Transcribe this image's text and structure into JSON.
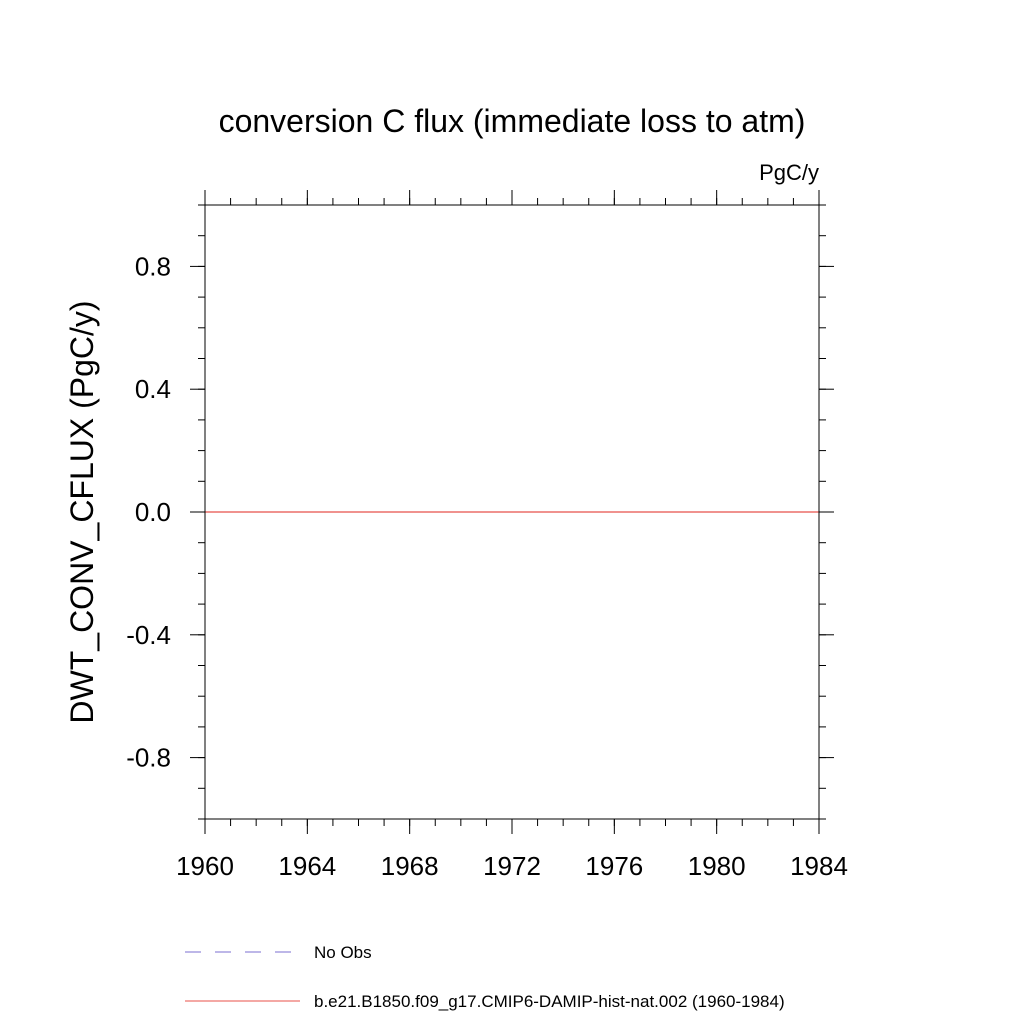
{
  "chart_data": {
    "type": "line",
    "title": "conversion C flux (immediate loss to atm)",
    "units_label": "PgC/y",
    "ylabel": "DWT_CONV_CFLUX  (PgC/y)",
    "xlabel": "",
    "xlim": [
      1960,
      1984
    ],
    "ylim": [
      -1.0,
      1.0
    ],
    "x_major_ticks": [
      1960,
      1964,
      1968,
      1972,
      1976,
      1980,
      1984
    ],
    "x_minor_step": 1,
    "x_tick_labels": [
      "1960",
      "1964",
      "1968",
      "1972",
      "1976",
      "1980",
      "1984"
    ],
    "y_major_ticks": [
      -0.8,
      -0.4,
      0.0,
      0.4,
      0.8
    ],
    "y_minor_step": 0.1,
    "y_tick_labels": [
      "-0.8",
      "-0.4",
      "0.0",
      "0.4",
      "0.8"
    ],
    "grid": false,
    "legend_position": "bottom",
    "series": [
      {
        "name": "No Obs",
        "color": "#7b6fd0",
        "dash": "dashed",
        "x": [],
        "y": []
      },
      {
        "name": "b.e21.B1850.f09_g17.CMIP6-DAMIP-hist-nat.002 (1960-1984)",
        "color": "#e8504a",
        "dash": "solid",
        "x": [
          1960,
          1961,
          1962,
          1963,
          1964,
          1965,
          1966,
          1967,
          1968,
          1969,
          1970,
          1971,
          1972,
          1973,
          1974,
          1975,
          1976,
          1977,
          1978,
          1979,
          1980,
          1981,
          1982,
          1983,
          1984
        ],
        "y": [
          0,
          0,
          0,
          0,
          0,
          0,
          0,
          0,
          0,
          0,
          0,
          0,
          0,
          0,
          0,
          0,
          0,
          0,
          0,
          0,
          0,
          0,
          0,
          0,
          0
        ]
      }
    ]
  }
}
